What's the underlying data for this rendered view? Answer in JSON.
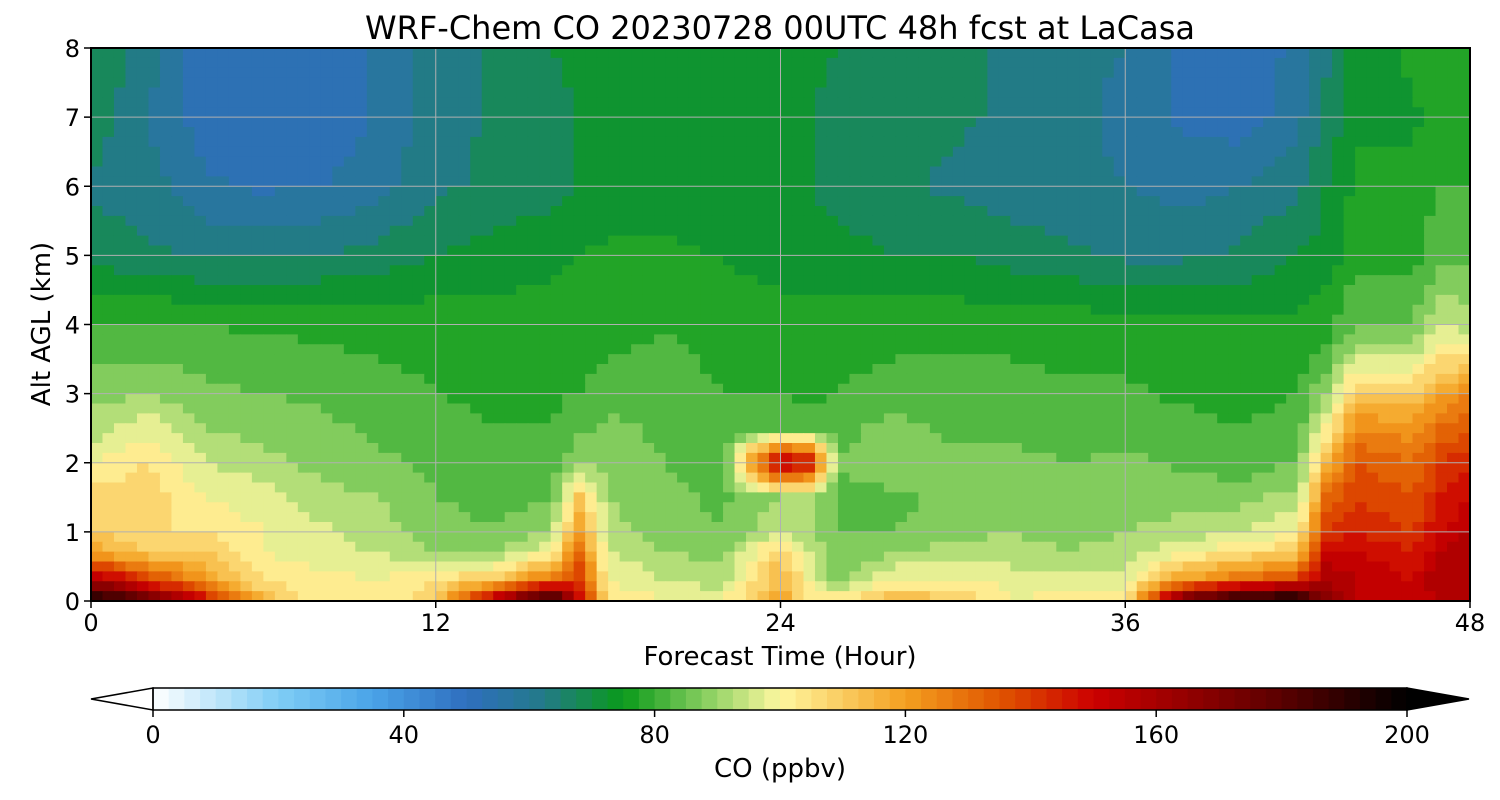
{
  "chart_data": {
    "type": "heatmap",
    "title": "WRF-Chem CO  20230728 00UTC 48h fcst at LaCasa",
    "xlabel": "Forecast Time (Hour)",
    "ylabel": "Alt AGL (km)",
    "xlim": [
      0,
      48
    ],
    "ylim": [
      0,
      8
    ],
    "x_ticks": [
      0,
      12,
      24,
      36,
      48
    ],
    "y_ticks": [
      0,
      1,
      2,
      3,
      4,
      5,
      6,
      7,
      8
    ],
    "grid": true,
    "x": [
      0,
      2,
      4,
      6,
      8,
      10,
      12,
      14,
      16,
      17,
      18,
      20,
      22,
      24,
      25,
      26,
      28,
      30,
      32,
      34,
      36,
      38,
      40,
      42,
      43,
      44,
      46,
      47,
      48
    ],
    "y": [
      0,
      0.3,
      0.7,
      1,
      1.5,
      2,
      2.5,
      3,
      3.5,
      4,
      5,
      6,
      7,
      8
    ],
    "values": [
      [
        200,
        180,
        150,
        115,
        100,
        100,
        110,
        160,
        200,
        150,
        105,
        100,
        100,
        120,
        105,
        105,
        115,
        112,
        100,
        102,
        105,
        180,
        200,
        200,
        170,
        155,
        150,
        155,
        160
      ],
      [
        160,
        140,
        120,
        105,
        102,
        100,
        105,
        110,
        130,
        140,
        100,
        95,
        92,
        115,
        100,
        88,
        100,
        100,
        98,
        96,
        98,
        120,
        130,
        140,
        160,
        155,
        150,
        160,
        160
      ],
      [
        120,
        110,
        110,
        100,
        97,
        95,
        90,
        90,
        100,
        130,
        95,
        90,
        88,
        110,
        95,
        85,
        90,
        92,
        92,
        90,
        92,
        100,
        105,
        110,
        150,
        150,
        145,
        155,
        160
      ],
      [
        110,
        105,
        105,
        100,
        96,
        92,
        88,
        85,
        90,
        120,
        92,
        88,
        85,
        95,
        90,
        85,
        85,
        88,
        90,
        88,
        90,
        92,
        95,
        100,
        140,
        145,
        140,
        150,
        155
      ],
      [
        108,
        108,
        100,
        97,
        92,
        90,
        85,
        83,
        84,
        110,
        90,
        86,
        84,
        90,
        90,
        84,
        84,
        86,
        88,
        86,
        88,
        88,
        88,
        92,
        130,
        140,
        135,
        145,
        150
      ],
      [
        100,
        105,
        95,
        92,
        88,
        86,
        84,
        82,
        82,
        90,
        88,
        85,
        83,
        160,
        150,
        85,
        88,
        86,
        86,
        85,
        86,
        84,
        82,
        85,
        115,
        135,
        130,
        140,
        145
      ],
      [
        92,
        98,
        90,
        88,
        86,
        84,
        82,
        80,
        80,
        84,
        86,
        84,
        82,
        84,
        82,
        84,
        86,
        84,
        84,
        83,
        83,
        82,
        80,
        82,
        100,
        125,
        122,
        130,
        135
      ],
      [
        88,
        90,
        86,
        85,
        84,
        82,
        80,
        79,
        79,
        80,
        84,
        83,
        80,
        80,
        79,
        80,
        84,
        82,
        82,
        81,
        81,
        79,
        78,
        80,
        90,
        110,
        110,
        120,
        125
      ],
      [
        84,
        85,
        83,
        82,
        81,
        80,
        79,
        78,
        78,
        78,
        80,
        82,
        78,
        78,
        78,
        78,
        80,
        80,
        80,
        79,
        79,
        78,
        77,
        78,
        82,
        95,
        95,
        105,
        105
      ],
      [
        80,
        81,
        80,
        79,
        79,
        78,
        78,
        77,
        77,
        77,
        78,
        79,
        77,
        77,
        77,
        77,
        78,
        78,
        78,
        78,
        77,
        77,
        76,
        76,
        78,
        85,
        85,
        95,
        92
      ],
      [
        68,
        66,
        64,
        64,
        65,
        67,
        70,
        72,
        74,
        75,
        76,
        76,
        75,
        73,
        72,
        72,
        70,
        70,
        68,
        66,
        64,
        64,
        66,
        70,
        72,
        78,
        78,
        84,
        84
      ],
      [
        64,
        62,
        56,
        54,
        55,
        58,
        64,
        66,
        68,
        70,
        72,
        72,
        70,
        70,
        70,
        68,
        66,
        64,
        62,
        62,
        60,
        58,
        60,
        64,
        70,
        76,
        76,
        80,
        80
      ],
      [
        68,
        60,
        52,
        50,
        50,
        56,
        62,
        66,
        68,
        70,
        72,
        72,
        70,
        70,
        70,
        68,
        66,
        66,
        64,
        62,
        58,
        54,
        52,
        58,
        66,
        74,
        74,
        78,
        78
      ],
      [
        70,
        62,
        52,
        50,
        50,
        56,
        62,
        66,
        70,
        72,
        74,
        74,
        72,
        72,
        72,
        70,
        68,
        66,
        64,
        62,
        60,
        54,
        52,
        56,
        64,
        72,
        76,
        80,
        78
      ]
    ],
    "colorbar": {
      "label": "CO  (ppbv)",
      "min": 0,
      "max": 200,
      "ticks": [
        0,
        40,
        80,
        120,
        160,
        200
      ],
      "extend": "both",
      "orientation": "horizontal",
      "placement": "bottom"
    },
    "colormap_stops": [
      {
        "v": 0,
        "c": "#ffffff"
      },
      {
        "v": 20,
        "c": "#7fcdf5"
      },
      {
        "v": 35,
        "c": "#4aa3e8"
      },
      {
        "v": 50,
        "c": "#2f6fbf"
      },
      {
        "v": 62,
        "c": "#237a8a"
      },
      {
        "v": 75,
        "c": "#0a9a1a"
      },
      {
        "v": 90,
        "c": "#9ad66a"
      },
      {
        "v": 100,
        "c": "#fff7a0"
      },
      {
        "v": 120,
        "c": "#f4a020"
      },
      {
        "v": 135,
        "c": "#e05500"
      },
      {
        "v": 150,
        "c": "#cc0000"
      },
      {
        "v": 180,
        "c": "#5a0000"
      },
      {
        "v": 200,
        "c": "#000000"
      }
    ]
  }
}
